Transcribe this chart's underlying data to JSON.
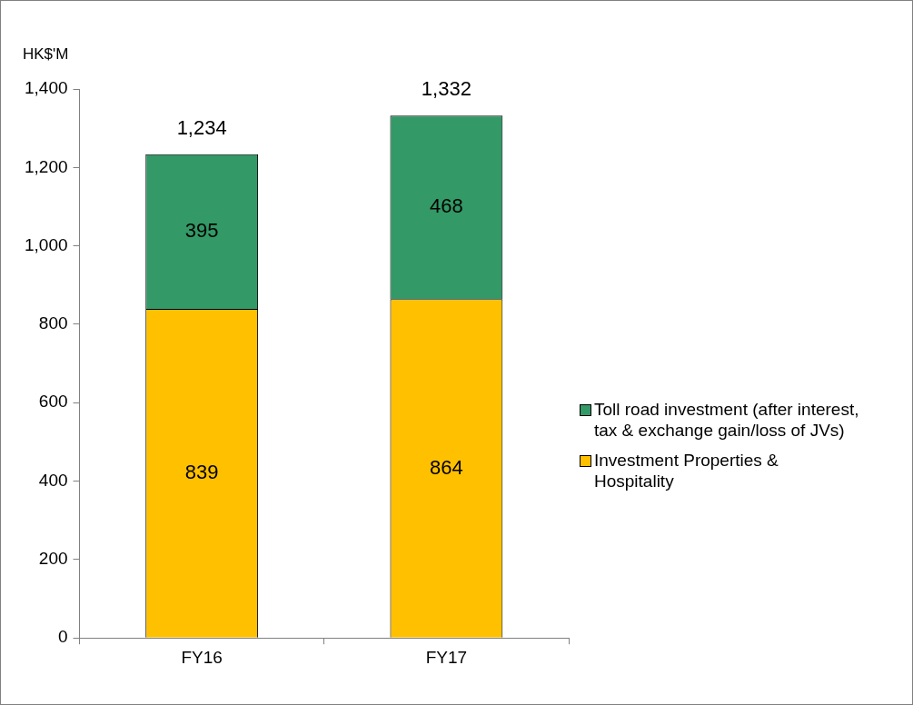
{
  "chart_data": {
    "type": "bar",
    "stacked": true,
    "ylabel": "HK$'M",
    "categories": [
      "FY16",
      "FY17"
    ],
    "series": [
      {
        "name": "Investment Properties & Hospitality",
        "color": "#ffc000",
        "values": [
          839,
          864
        ]
      },
      {
        "name": "Toll road investment (after interest, tax & exchange gain/loss of JVs)",
        "color": "#339966",
        "values": [
          395,
          468
        ]
      }
    ],
    "totals": [
      "1,234",
      "1,332"
    ],
    "data_labels": true,
    "ylim": [
      0,
      1400
    ],
    "yticks": [
      0,
      200,
      400,
      600,
      800,
      {
        "value": 1000,
        "label": "1,000"
      },
      {
        "value": 1200,
        "label": "1,200"
      },
      {
        "value": 1400,
        "label": "1,400"
      }
    ],
    "grid": false,
    "legend": "right"
  }
}
